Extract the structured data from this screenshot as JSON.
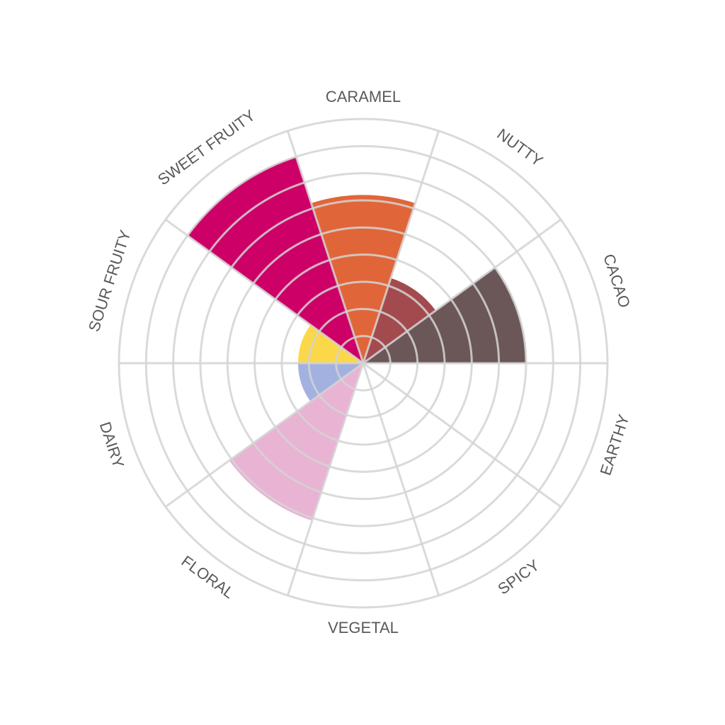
{
  "chart_data": {
    "type": "polar-area",
    "categories": [
      "CARAMEL",
      "NUTTY",
      "CACAO",
      "EARTHY",
      "SPICY",
      "VEGETAL",
      "FLORAL",
      "DAIRY",
      "SOUR FRUITY",
      "SWEET FRUITY"
    ],
    "series": [
      {
        "colors": [
          "#e0663a",
          "#a34a4f",
          "#6b5658",
          "#cccccc",
          "#cccccc",
          "#cccccc",
          "#e9b3d3",
          "#a3b1e0",
          "#fbd84a",
          "#cc0066"
        ],
        "values": [
          6.2,
          3.3,
          6,
          0,
          0,
          0,
          6.1,
          2.4,
          2.4,
          8
        ]
      }
    ],
    "ylim": [
      0,
      9
    ],
    "yticks": [
      1,
      2,
      3,
      4,
      5,
      6,
      7,
      8,
      9
    ],
    "grid": true
  }
}
